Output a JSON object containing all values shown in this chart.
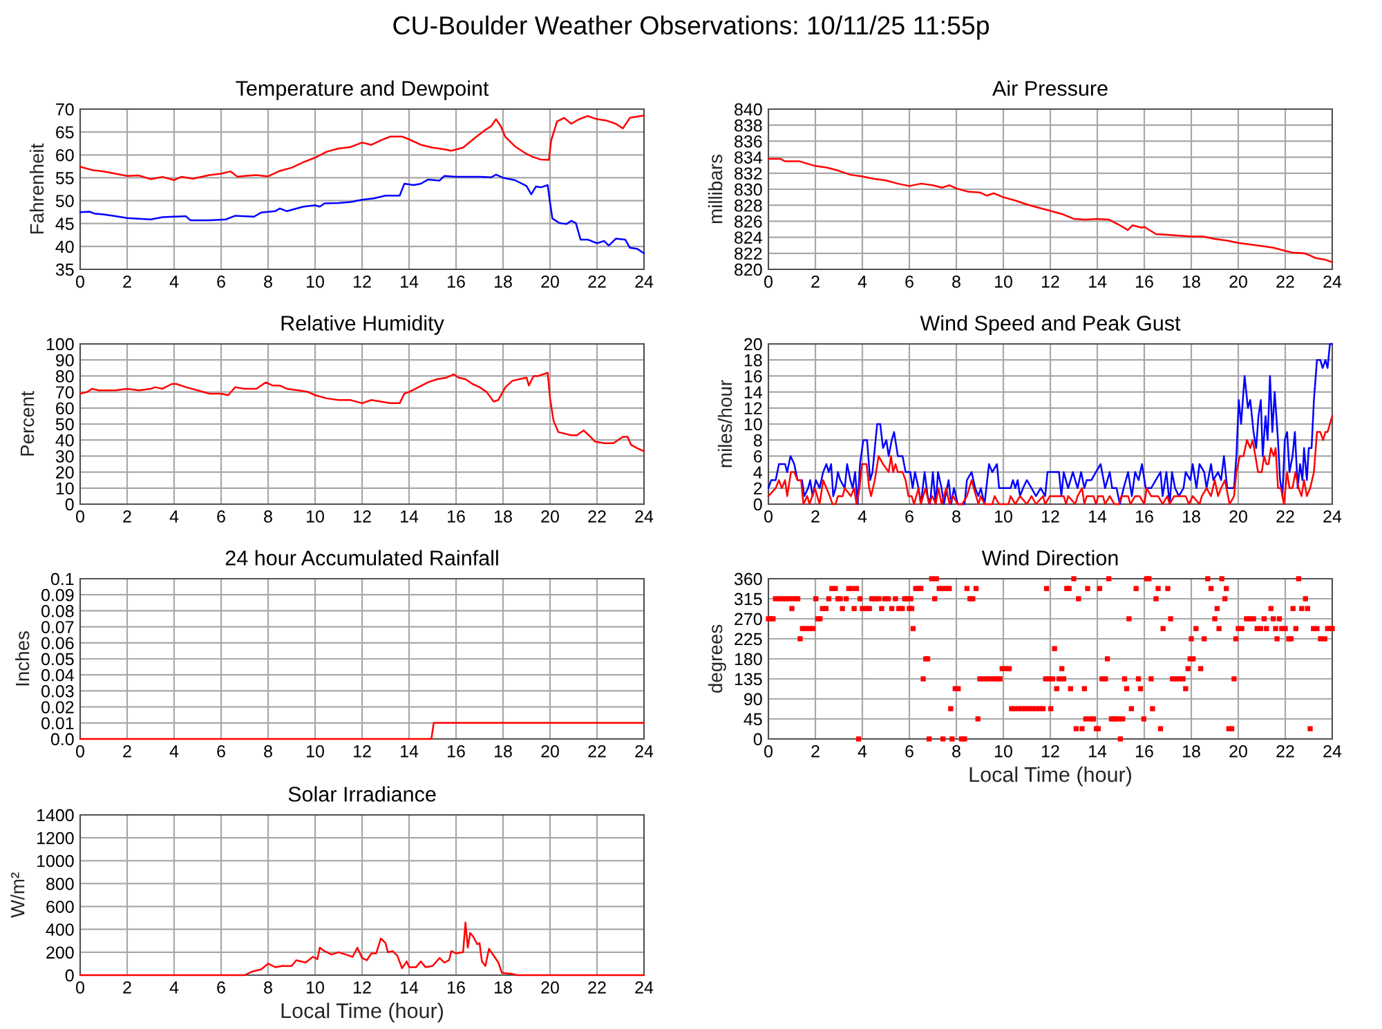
{
  "chart_data": [
    {
      "type": "line",
      "title": "Temperature and Dewpoint",
      "ylabel": "Fahrenheit",
      "annotations": [
        "CU-Boulder Weather Observations: 10/11/25 11:55p"
      ],
      "xlim": [
        0,
        24
      ],
      "xticks": [
        0,
        2,
        4,
        6,
        8,
        10,
        12,
        14,
        16,
        18,
        20,
        22,
        24
      ],
      "ylim": [
        35,
        70
      ],
      "yticks": [
        35,
        40,
        45,
        50,
        55,
        60,
        65,
        70
      ],
      "grid": true,
      "series": [
        {
          "color": "#ff0000",
          "x": [
            0,
            0.5,
            1,
            1.5,
            2,
            2.5,
            3,
            3.5,
            4,
            4.3,
            4.8,
            5.5,
            6,
            6.4,
            6.7,
            7,
            7.5,
            8,
            8.5,
            9,
            9.5,
            10,
            10.5,
            11,
            11.5,
            12,
            12.4,
            12.8,
            13.2,
            13.7,
            14,
            14.5,
            15,
            15.5,
            15.8,
            16.3,
            16.8,
            17.2,
            17.5,
            17.7,
            17.9,
            18.1,
            18.5,
            19,
            19.3,
            19.6,
            19.95,
            20.05,
            20.3,
            20.6,
            20.9,
            21.2,
            21.6,
            22,
            22.4,
            22.8,
            23.1,
            23.4,
            24
          ],
          "values": [
            57.4,
            56.7,
            56.4,
            55.9,
            55.4,
            55.5,
            54.7,
            55.2,
            54.5,
            55.2,
            54.8,
            55.6,
            55.9,
            56.4,
            55.2,
            55.4,
            55.6,
            55.3,
            56.5,
            57.2,
            58.4,
            59.4,
            60.7,
            61.4,
            61.7,
            62.7,
            62.2,
            63.2,
            64.0,
            64.0,
            63.4,
            62.2,
            61.6,
            61.2,
            60.9,
            61.6,
            63.7,
            65.3,
            66.3,
            67.8,
            66.3,
            63.9,
            61.9,
            60.2,
            59.5,
            59.0,
            58.9,
            63.2,
            67.3,
            68.1,
            66.8,
            67.7,
            68.5,
            67.8,
            67.5,
            66.8,
            65.8,
            68.1,
            68.6
          ]
        },
        {
          "color": "#0000ff",
          "x": [
            0,
            0.4,
            0.6,
            1,
            1.5,
            2,
            3,
            3.5,
            4.5,
            4.7,
            5.5,
            6.2,
            6.6,
            7.4,
            7.7,
            8.3,
            8.5,
            8.8,
            9.5,
            10,
            10.2,
            10.4,
            11,
            11.5,
            12,
            12.5,
            13,
            13.6,
            13.8,
            14.2,
            14.5,
            14.8,
            15.3,
            15.5,
            16,
            16.5,
            17,
            17.5,
            17.7,
            18,
            18.5,
            19,
            19.2,
            19.4,
            19.6,
            19.9,
            20,
            20.1,
            20.4,
            20.7,
            20.9,
            21.1,
            21.3,
            21.6,
            22,
            22.3,
            22.5,
            22.8,
            23.2,
            23.4,
            23.7,
            24
          ],
          "values": [
            47.5,
            47.6,
            47.2,
            47.0,
            46.6,
            46.2,
            45.9,
            46.4,
            46.6,
            45.7,
            45.7,
            45.9,
            46.7,
            46.5,
            47.4,
            47.7,
            48.3,
            47.7,
            48.7,
            49.0,
            48.7,
            49.4,
            49.5,
            49.7,
            50.2,
            50.5,
            51.1,
            51.1,
            53.7,
            53.4,
            53.7,
            54.6,
            54.4,
            55.4,
            55.2,
            55.2,
            55.2,
            55.1,
            55.7,
            55.0,
            54.5,
            53.2,
            51.4,
            53.1,
            52.9,
            53.4,
            49.6,
            46.1,
            45.1,
            44.9,
            45.6,
            45.1,
            41.5,
            41.5,
            40.7,
            41.2,
            40.2,
            41.7,
            41.5,
            39.7,
            39.5,
            38.5
          ]
        }
      ]
    },
    {
      "type": "line",
      "title": "Air Pressure",
      "ylabel": "millibars",
      "xlim": [
        0,
        24
      ],
      "xticks": [
        0,
        2,
        4,
        6,
        8,
        10,
        12,
        14,
        16,
        18,
        20,
        22,
        24
      ],
      "ylim": [
        820,
        840
      ],
      "yticks": [
        820,
        822,
        824,
        826,
        828,
        830,
        832,
        834,
        836,
        838,
        840
      ],
      "grid": true,
      "series": [
        {
          "color": "#ff0000",
          "x": [
            0,
            0.5,
            0.7,
            1.3,
            2,
            2.5,
            3,
            3.5,
            4,
            4.5,
            5,
            5.5,
            6,
            6.5,
            7,
            7.4,
            7.7,
            8,
            8.5,
            9,
            9.3,
            9.6,
            10,
            10.5,
            11,
            11.5,
            12,
            12.5,
            13,
            13.5,
            14,
            14.5,
            14.9,
            15.3,
            15.5,
            15.9,
            16,
            16.5,
            17,
            17.5,
            18,
            18.5,
            19,
            19.5,
            20,
            20.5,
            21,
            21.5,
            22,
            22.3,
            22.8,
            23,
            23.3,
            23.7,
            24
          ],
          "values": [
            833.8,
            833.8,
            833.5,
            833.5,
            832.9,
            832.7,
            832.3,
            831.8,
            831.6,
            831.3,
            831.1,
            830.7,
            830.4,
            830.7,
            830.5,
            830.2,
            830.5,
            830.1,
            829.7,
            829.6,
            829.2,
            829.5,
            829.0,
            828.6,
            828.1,
            827.7,
            827.3,
            826.9,
            826.3,
            826.2,
            826.3,
            826.2,
            825.6,
            824.9,
            825.5,
            825.2,
            825.3,
            824.4,
            824.3,
            824.2,
            824.1,
            824.1,
            823.8,
            823.6,
            823.3,
            823.1,
            822.9,
            822.7,
            822.3,
            822.1,
            822.0,
            821.8,
            821.4,
            821.2,
            820.9
          ]
        }
      ]
    },
    {
      "type": "line",
      "title": "Relative Humidity",
      "ylabel": "Percent",
      "xlim": [
        0,
        24
      ],
      "xticks": [
        0,
        2,
        4,
        6,
        8,
        10,
        12,
        14,
        16,
        18,
        20,
        22,
        24
      ],
      "ylim": [
        0,
        100
      ],
      "yticks": [
        0,
        10,
        20,
        30,
        40,
        50,
        60,
        70,
        80,
        90,
        100
      ],
      "grid": true,
      "series": [
        {
          "color": "#ff0000",
          "x": [
            0,
            0.3,
            0.5,
            0.8,
            1.5,
            2,
            2.5,
            3,
            3.2,
            3.5,
            3.9,
            4.1,
            4.5,
            5,
            5.5,
            6,
            6.3,
            6.6,
            7,
            7.5,
            7.9,
            8.2,
            8.5,
            8.8,
            9.3,
            9.7,
            10,
            10.5,
            11,
            11.5,
            12,
            12.4,
            12.8,
            13.2,
            13.6,
            13.8,
            14,
            14.4,
            14.8,
            15.2,
            15.6,
            15.9,
            16.1,
            16.4,
            16.7,
            17,
            17.3,
            17.6,
            17.8,
            18.1,
            18.4,
            18.7,
            19,
            19.1,
            19.3,
            19.5,
            19.9,
            20,
            20.15,
            20.35,
            20.9,
            21.14,
            21.43,
            21.65,
            21.92,
            22.3,
            22.7,
            23.1,
            23.3,
            23.45,
            23.7,
            24
          ],
          "values": [
            69,
            70,
            72,
            71,
            71,
            72,
            71,
            72,
            73,
            72,
            75,
            75,
            73,
            71,
            69,
            69,
            68,
            73,
            72,
            72,
            76,
            74,
            74,
            72,
            71,
            70,
            68,
            66,
            65,
            65,
            63,
            65,
            64,
            63,
            63,
            69,
            70,
            73,
            76,
            78,
            79,
            81,
            79,
            78,
            75,
            73,
            70,
            64,
            65,
            73,
            77,
            78,
            79,
            74,
            80,
            80,
            82,
            66,
            52,
            45,
            43,
            43,
            46,
            43,
            39,
            38,
            38,
            42,
            42,
            37,
            35,
            33
          ]
        }
      ]
    },
    {
      "type": "line",
      "title": "Wind Speed and Peak Gust",
      "ylabel": "miles/hour",
      "xlim": [
        0,
        24
      ],
      "xticks": [
        0,
        2,
        4,
        6,
        8,
        10,
        12,
        14,
        16,
        18,
        20,
        22,
        24
      ],
      "ylim": [
        0,
        20
      ],
      "yticks": [
        0,
        2,
        4,
        6,
        8,
        10,
        12,
        14,
        16,
        18,
        20
      ],
      "grid": true,
      "series": [
        {
          "color": "#0000ff",
          "x": [
            0,
            0.12,
            0.31,
            0.45,
            0.71,
            0.8,
            0.94,
            1.1,
            1.24,
            1.43,
            1.53,
            1.69,
            1.78,
            1.88,
            2.02,
            2.18,
            2.33,
            2.47,
            2.57,
            2.67,
            2.76,
            2.86,
            2.96,
            3.06,
            3.25,
            3.35,
            3.49,
            3.59,
            3.69,
            3.8,
            3.9,
            4.04,
            4.2,
            4.33,
            4.43,
            4.63,
            4.76,
            4.88,
            5.02,
            5.12,
            5.25,
            5.35,
            5.51,
            5.71,
            5.84,
            6.04,
            6.14,
            6.24,
            6.39,
            6.49,
            6.65,
            6.78,
            6.88,
            7,
            7.12,
            7.22,
            7.37,
            7.47,
            7.67,
            7.78,
            7.9,
            8.06,
            8.35,
            8.45,
            8.65,
            8.8,
            8.94,
            9.04,
            9.2,
            9.39,
            9.53,
            9.73,
            9.82,
            10.31,
            10.41,
            10.51,
            10.61,
            10.71,
            10.84,
            11,
            11.2,
            11.39,
            11.59,
            11.78,
            11.88,
            12.37,
            12.47,
            12.57,
            12.76,
            12.96,
            13.16,
            13.31,
            13.45,
            13.55,
            13.75,
            13.94,
            14.14,
            14.33,
            14.53,
            14.63,
            14.82,
            14.96,
            15.12,
            15.31,
            15.47,
            15.61,
            15.76,
            15.9,
            16.06,
            16.29,
            16.49,
            16.69,
            16.78,
            16.94,
            17.08,
            17.18,
            17.31,
            17.47,
            17.67,
            17.76,
            17.96,
            18.06,
            18.22,
            18.35,
            18.55,
            18.65,
            18.84,
            18.94,
            19.14,
            19.27,
            19.39,
            19.53,
            19.82,
            19.92,
            20.02,
            20.12,
            20.27,
            20.41,
            20.51,
            20.65,
            20.76,
            20.86,
            20.96,
            21.04,
            21.16,
            21.25,
            21.35,
            21.45,
            21.55,
            21.69,
            21.78,
            21.88,
            21.98,
            22.08,
            22.18,
            22.31,
            22.41,
            22.53,
            22.63,
            22.73,
            22.8,
            22.92,
            23,
            23.12,
            23.22,
            23.35,
            23.49,
            23.59,
            23.71,
            23.8,
            23.9,
            24
          ],
          "values": [
            2,
            3,
            3,
            5,
            5,
            4,
            6,
            5,
            3,
            3,
            1,
            2,
            3,
            1,
            3,
            2,
            4,
            5,
            4,
            5,
            1,
            2,
            4,
            3,
            2,
            5,
            3,
            2,
            4,
            0,
            5,
            8,
            8,
            3,
            4,
            10,
            10,
            7,
            8,
            6,
            8,
            9,
            6,
            6,
            4,
            4,
            2,
            4,
            2,
            0,
            4,
            1,
            0,
            4,
            0,
            4,
            2,
            0,
            3,
            0,
            2,
            0,
            0,
            3,
            4,
            2,
            1,
            2,
            0,
            5,
            4,
            5,
            2,
            2,
            3,
            2,
            3,
            1,
            2,
            3,
            2,
            1,
            2,
            1,
            4,
            4,
            1,
            4,
            2,
            4,
            2,
            4,
            2,
            3,
            3,
            4,
            5,
            2,
            4,
            2,
            2,
            0,
            2,
            4,
            1,
            4,
            3,
            5,
            2,
            2,
            3,
            4,
            1,
            4,
            0,
            4,
            2,
            1,
            2,
            4,
            3,
            5,
            2,
            5,
            4,
            2,
            5,
            3,
            4,
            3,
            6,
            2,
            2,
            6,
            13,
            10,
            16,
            12,
            13,
            9,
            7,
            11,
            13,
            6,
            11,
            8,
            16,
            9,
            14,
            8,
            3,
            1,
            8,
            9,
            4,
            6,
            9,
            2,
            5,
            3,
            7,
            3,
            7,
            7,
            13,
            18,
            18,
            17,
            18,
            17,
            20,
            20
          ]
        },
        {
          "color": "#ff0000",
          "x": [
            0,
            0.31,
            0.45,
            0.57,
            0.71,
            0.8,
            0.96,
            1.1,
            1.24,
            1.39,
            1.49,
            1.65,
            1.75,
            1.98,
            2.18,
            2.33,
            2.47,
            2.61,
            2.73,
            2.86,
            2.96,
            3.16,
            3.25,
            3.51,
            3.65,
            3.75,
            3.88,
            3.98,
            4.18,
            4.29,
            4.37,
            4.53,
            4.69,
            4.88,
            5.12,
            5.22,
            5.31,
            5.41,
            5.51,
            5.71,
            5.84,
            5.96,
            6.1,
            6.2,
            6.39,
            6.49,
            6.69,
            6.84,
            6.98,
            7.12,
            7.24,
            7.37,
            7.57,
            7.71,
            7.86,
            8.06,
            8.25,
            8.45,
            8.65,
            8.84,
            8.94,
            9.04,
            9.2,
            9.53,
            9.63,
            9.82,
            10.22,
            10.31,
            10.51,
            10.71,
            11,
            11.2,
            11.39,
            11.69,
            11.78,
            11.98,
            12.57,
            12.67,
            12.76,
            13.06,
            13.16,
            13.35,
            13.45,
            13.55,
            13.84,
            13.94,
            14.04,
            14.24,
            14.33,
            14.53,
            14.73,
            14.92,
            15.02,
            15.31,
            15.41,
            15.61,
            15.8,
            16,
            16.1,
            16.29,
            16.59,
            16.78,
            16.98,
            17.08,
            17.27,
            17.76,
            17.9,
            18.06,
            18.35,
            18.45,
            18.65,
            18.84,
            19,
            19.14,
            19.27,
            19.43,
            19.63,
            19.82,
            19.92,
            20.06,
            20.22,
            20.37,
            20.51,
            20.61,
            20.73,
            20.84,
            21,
            21.1,
            21.2,
            21.29,
            21.39,
            21.51,
            21.59,
            21.69,
            21.82,
            21.94,
            22.08,
            22.18,
            22.31,
            22.43,
            22.57,
            22.69,
            22.8,
            22.92,
            23.06,
            23.22,
            23.35,
            23.49,
            23.61,
            23.71,
            23.8,
            23.9,
            24
          ],
          "values": [
            1,
            2,
            3,
            2,
            3,
            1,
            4,
            4,
            3,
            3,
            0,
            1,
            0,
            2,
            0,
            3,
            2,
            1,
            0,
            0,
            1,
            1,
            2,
            1,
            2,
            0,
            2,
            5,
            5,
            2,
            1,
            3,
            6,
            5,
            4,
            6,
            4,
            5,
            4,
            4,
            3,
            1,
            1,
            0,
            2,
            0,
            2,
            0,
            1,
            0,
            2,
            0,
            2,
            0,
            1,
            0,
            0,
            1,
            3,
            1,
            0,
            1,
            0,
            0,
            1,
            0,
            0,
            1,
            0,
            1,
            0,
            1,
            0,
            1,
            0,
            1,
            1,
            0,
            1,
            0,
            1,
            2,
            0,
            1,
            1,
            0,
            1,
            1,
            0,
            1,
            0,
            0,
            1,
            1,
            0,
            1,
            1,
            0,
            2,
            1,
            1,
            0,
            1,
            0,
            1,
            1,
            0,
            1,
            0,
            1,
            2,
            1,
            3,
            1,
            2,
            3,
            0,
            1,
            4,
            6,
            6,
            8,
            7,
            8,
            6,
            4,
            4,
            6,
            5,
            5,
            7,
            6,
            7,
            2,
            2,
            0,
            4,
            2,
            2,
            4,
            2,
            1,
            3,
            1,
            2,
            4,
            9,
            9,
            8,
            9,
            9,
            10,
            11
          ]
        }
      ]
    },
    {
      "type": "line",
      "title": "24 hour Accumulated Rainfall",
      "ylabel": "Inches",
      "xlim": [
        0,
        24
      ],
      "xticks": [
        0,
        2,
        4,
        6,
        8,
        10,
        12,
        14,
        16,
        18,
        20,
        22,
        24
      ],
      "ylim": [
        0,
        0.1
      ],
      "yticks": [
        {
          "value": 0,
          "label": "0.0"
        },
        0.01,
        0.02,
        0.03,
        0.04,
        0.05,
        0.06,
        0.07,
        0.08,
        0.09,
        0.1
      ],
      "grid": true,
      "series": [
        {
          "color": "#ff0000",
          "x": [
            0,
            1,
            2,
            3,
            4,
            5,
            6,
            7,
            8,
            9,
            10,
            11,
            12,
            13,
            14,
            14.95,
            15.05,
            16,
            17,
            18,
            19,
            20,
            21,
            22,
            23,
            24
          ],
          "values": [
            0,
            0,
            0,
            0,
            0,
            0,
            0,
            0,
            0,
            0,
            0,
            0,
            0,
            0,
            0,
            0,
            0.01,
            0.01,
            0.01,
            0.01,
            0.01,
            0.01,
            0.01,
            0.01,
            0.01,
            0.01
          ]
        }
      ]
    },
    {
      "type": "scatter",
      "title": "Wind Direction",
      "xlabel": "Local Time (hour)",
      "ylabel": "degrees",
      "marker": "square",
      "xlim": [
        0,
        24
      ],
      "xticks": [
        0,
        2,
        4,
        6,
        8,
        10,
        12,
        14,
        16,
        18,
        20,
        22,
        24
      ],
      "ylim": [
        0,
        360
      ],
      "yticks": [
        0,
        45,
        90,
        135,
        180,
        225,
        270,
        315,
        360
      ],
      "grid": true,
      "series": [
        {
          "color": "#ff0000",
          "x": [
            0,
            0.1,
            0.2,
            0.3,
            0.45,
            0.6,
            0.75,
            0.9,
            1.0,
            1.1,
            1.25,
            1.35,
            1.45,
            1.6,
            1.75,
            1.9,
            2.02,
            2.1,
            2.2,
            2.3,
            2.45,
            2.57,
            2.7,
            2.85,
            2.96,
            3.06,
            3.15,
            3.31,
            3.42,
            3.55,
            3.65,
            3.75,
            3.84,
            3.9,
            4.0,
            4.15,
            4.3,
            4.4,
            4.55,
            4.7,
            4.82,
            4.95,
            5.1,
            5.25,
            5.41,
            5.55,
            5.7,
            5.8,
            5.9,
            6.0,
            6.06,
            6.1,
            6.16,
            6.27,
            6.4,
            6.49,
            6.59,
            6.7,
            6.78,
            6.84,
            6.95,
            7.08,
            7.15,
            7.27,
            7.4,
            7.43,
            7.55,
            7.7,
            7.76,
            7.82,
            7.95,
            8.08,
            8.22,
            8.35,
            8.45,
            8.58,
            8.7,
            8.84,
            8.92,
            9.0,
            9.15,
            9.3,
            9.45,
            9.6,
            9.75,
            9.86,
            9.95,
            10.1,
            10.25,
            10.35,
            10.5,
            10.65,
            10.8,
            10.95,
            11.1,
            11.25,
            11.4,
            11.55,
            11.69,
            11.8,
            11.84,
            11.95,
            12.02,
            12.1,
            12.18,
            12.27,
            12.37,
            12.49,
            12.57,
            12.7,
            12.8,
            12.86,
            13.0,
            13.1,
            13.2,
            13.35,
            13.45,
            13.51,
            13.59,
            13.72,
            13.84,
            13.96,
            14.04,
            14.1,
            14.2,
            14.35,
            14.43,
            14.49,
            14.6,
            14.7,
            14.8,
            14.9,
            14.98,
            15.08,
            15.16,
            15.25,
            15.35,
            15.45,
            15.65,
            15.75,
            15.84,
            15.98,
            16.1,
            16.2,
            16.29,
            16.35,
            16.5,
            16.59,
            16.69,
            16.8,
            17.0,
            17.12,
            17.2,
            17.35,
            17.5,
            17.65,
            17.76,
            17.86,
            17.95,
            18.0,
            18.08,
            18.2,
            18.4,
            18.55,
            18.7,
            18.84,
            19.0,
            19.1,
            19.18,
            19.3,
            19.43,
            19.49,
            19.6,
            19.72,
            19.82,
            19.9,
            20.0,
            20.15,
            20.35,
            20.5,
            20.65,
            20.8,
            20.95,
            21.1,
            21.2,
            21.39,
            21.49,
            21.59,
            21.65,
            21.75,
            21.85,
            22.0,
            22.15,
            22.25,
            22.33,
            22.45,
            22.57,
            22.7,
            22.86,
            22.95,
            23.06,
            23.2,
            23.35,
            23.5,
            23.68,
            23.8,
            23.9,
            24.0
          ],
          "values": [
            270,
            270,
            270,
            315,
            315,
            315,
            315,
            315,
            293,
            315,
            315,
            225,
            248,
            248,
            248,
            248,
            315,
            270,
            270,
            293,
            293,
            315,
            338,
            338,
            315,
            315,
            293,
            315,
            338,
            338,
            293,
            338,
            0,
            315,
            293,
            293,
            293,
            315,
            315,
            315,
            293,
            315,
            315,
            293,
            315,
            293,
            293,
            315,
            315,
            293,
            315,
            293,
            248,
            338,
            338,
            338,
            135,
            180,
            180,
            0,
            360,
            315,
            360,
            338,
            338,
            0,
            338,
            338,
            68,
            0,
            113,
            113,
            0,
            0,
            338,
            315,
            315,
            338,
            45,
            135,
            135,
            135,
            135,
            135,
            135,
            135,
            158,
            158,
            158,
            68,
            68,
            68,
            68,
            68,
            68,
            68,
            68,
            68,
            68,
            135,
            338,
            135,
            68,
            135,
            203,
            113,
            135,
            158,
            135,
            338,
            338,
            113,
            360,
            23,
            315,
            23,
            113,
            45,
            338,
            45,
            45,
            23,
            23,
            338,
            135,
            135,
            180,
            360,
            45,
            45,
            45,
            45,
            0,
            45,
            135,
            113,
            270,
            68,
            338,
            135,
            113,
            45,
            360,
            360,
            135,
            68,
            315,
            338,
            23,
            248,
            338,
            270,
            135,
            135,
            135,
            135,
            113,
            158,
            180,
            225,
            180,
            248,
            158,
            225,
            360,
            338,
            270,
            293,
            248,
            360,
            315,
            338,
            23,
            23,
            135,
            225,
            248,
            248,
            270,
            270,
            270,
            248,
            248,
            270,
            248,
            293,
            270,
            248,
            225,
            270,
            248,
            248,
            225,
            225,
            293,
            248,
            360,
            293,
            315,
            293,
            23,
            248,
            248,
            225,
            225,
            248,
            248,
            248
          ]
        }
      ]
    },
    {
      "type": "line",
      "title": "Solar Irradiance",
      "xlabel": "Local Time (hour)",
      "ylabel": "W/m²",
      "xlim": [
        0,
        24
      ],
      "xticks": [
        0,
        2,
        4,
        6,
        8,
        10,
        12,
        14,
        16,
        18,
        20,
        22,
        24
      ],
      "ylim": [
        0,
        1400
      ],
      "yticks": [
        0,
        200,
        400,
        600,
        800,
        1000,
        1200,
        1400
      ],
      "grid": true,
      "series": [
        {
          "color": "#ff0000",
          "x": [
            0,
            7.0,
            7.3,
            7.7,
            8.0,
            8.3,
            8.6,
            9.0,
            9.2,
            9.6,
            9.9,
            10.1,
            10.2,
            10.4,
            10.7,
            11.0,
            11.3,
            11.6,
            11.8,
            12.0,
            12.2,
            12.4,
            12.6,
            12.8,
            13.0,
            13.1,
            13.3,
            13.5,
            13.7,
            13.9,
            14.0,
            14.3,
            14.5,
            14.7,
            15.0,
            15.3,
            15.5,
            15.7,
            15.8,
            16.0,
            16.3,
            16.4,
            16.5,
            16.6,
            16.75,
            16.9,
            17.0,
            17.1,
            17.25,
            17.4,
            17.6,
            17.8,
            17.95,
            18.4,
            18.6,
            24
          ],
          "values": [
            0,
            0,
            30,
            50,
            100,
            70,
            80,
            80,
            130,
            110,
            160,
            140,
            240,
            210,
            180,
            200,
            180,
            160,
            240,
            150,
            130,
            190,
            190,
            320,
            280,
            200,
            210,
            170,
            60,
            120,
            70,
            70,
            120,
            70,
            80,
            150,
            110,
            130,
            210,
            190,
            200,
            460,
            240,
            370,
            330,
            270,
            280,
            120,
            80,
            230,
            170,
            110,
            20,
            10,
            0,
            0
          ]
        }
      ]
    }
  ]
}
